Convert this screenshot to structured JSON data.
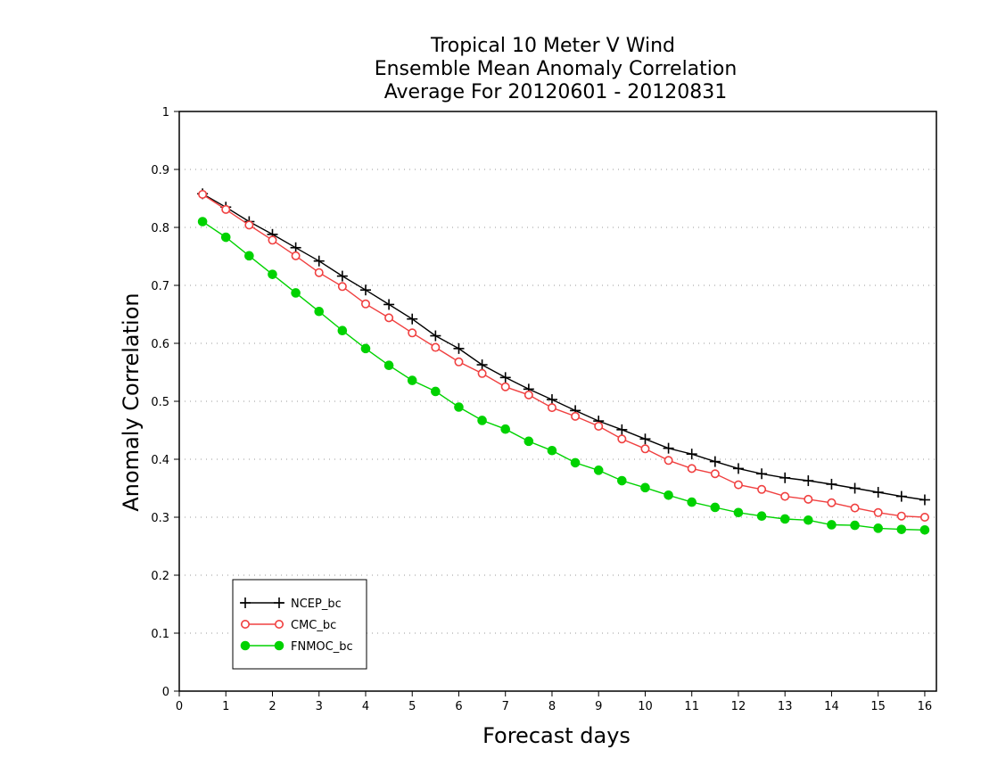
{
  "chart_data": {
    "type": "line",
    "title": [
      "Tropical 10 Meter V Wind",
      "Ensemble Mean Anomaly Correlation",
      "Average For 20120601 - 20120831"
    ],
    "xlabel": "Forecast days",
    "ylabel": "Anomaly Correlation",
    "xlim": [
      0,
      16.25
    ],
    "ylim": [
      0,
      1
    ],
    "xticks": [
      "0",
      "1",
      "2",
      "3",
      "4",
      "5",
      "6",
      "7",
      "8",
      "9",
      "10",
      "11",
      "12",
      "13",
      "14",
      "15",
      "16"
    ],
    "yticks": [
      "0",
      "0.1",
      "0.2",
      "0.3",
      "0.4",
      "0.5",
      "0.6",
      "0.7",
      "0.8",
      "0.9",
      "1"
    ],
    "grid": "horizontal-dotted",
    "legend_position": "bottom-left",
    "x": [
      0.5,
      1,
      1.5,
      2,
      2.5,
      3,
      3.5,
      4,
      4.5,
      5,
      5.5,
      6,
      6.5,
      7,
      7.5,
      8,
      8.5,
      9,
      9.5,
      10,
      10.5,
      11,
      11.5,
      12,
      12.5,
      13,
      13.5,
      14,
      14.5,
      15,
      15.5,
      16
    ],
    "series": [
      {
        "name": "NCEP_bc",
        "color": "#000000",
        "marker": "plus",
        "values": [
          0.858,
          0.835,
          0.81,
          0.788,
          0.765,
          0.742,
          0.716,
          0.692,
          0.667,
          0.642,
          0.613,
          0.591,
          0.563,
          0.541,
          0.521,
          0.503,
          0.484,
          0.466,
          0.451,
          0.435,
          0.419,
          0.409,
          0.396,
          0.384,
          0.375,
          0.368,
          0.363,
          0.357,
          0.35,
          0.343,
          0.336,
          0.33
        ]
      },
      {
        "name": "CMC_bc",
        "color": "#f04040",
        "marker": "open-circle",
        "values": [
          0.857,
          0.831,
          0.804,
          0.778,
          0.751,
          0.722,
          0.698,
          0.668,
          0.644,
          0.618,
          0.593,
          0.568,
          0.548,
          0.525,
          0.511,
          0.489,
          0.474,
          0.457,
          0.435,
          0.418,
          0.398,
          0.384,
          0.375,
          0.356,
          0.348,
          0.336,
          0.331,
          0.325,
          0.316,
          0.308,
          0.302,
          0.3
        ]
      },
      {
        "name": "FNMOC_bc",
        "color": "#00d200",
        "marker": "filled-circle",
        "values": [
          0.81,
          0.783,
          0.751,
          0.719,
          0.687,
          0.655,
          0.622,
          0.591,
          0.562,
          0.536,
          0.517,
          0.49,
          0.467,
          0.452,
          0.431,
          0.415,
          0.394,
          0.381,
          0.363,
          0.351,
          0.338,
          0.326,
          0.317,
          0.308,
          0.302,
          0.297,
          0.295,
          0.287,
          0.286,
          0.281,
          0.279,
          0.278
        ]
      }
    ]
  }
}
